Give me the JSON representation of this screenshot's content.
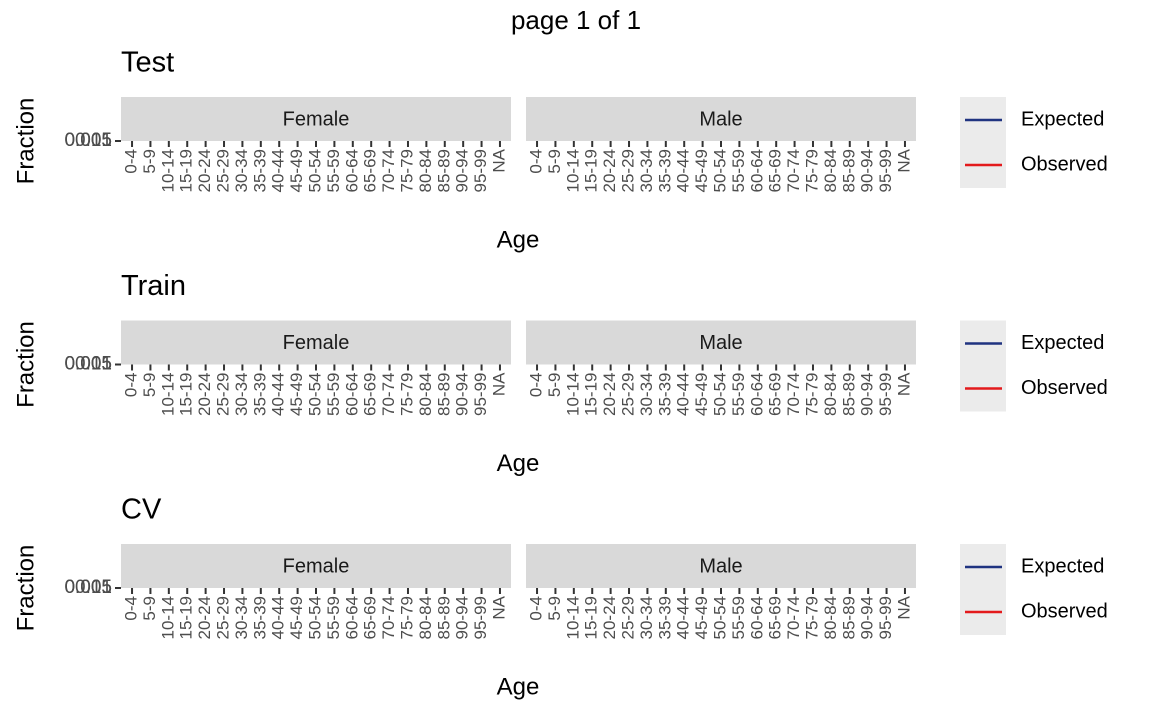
{
  "page_title": "page 1 of 1",
  "chart_data": [
    {
      "type": "line",
      "title": "Test",
      "facets": [
        "Female",
        "Male"
      ],
      "categories": [
        "0-4",
        "5-9",
        "10-14",
        "15-19",
        "20-24",
        "25-29",
        "30-34",
        "35-39",
        "40-44",
        "45-49",
        "50-54",
        "55-59",
        "60-64",
        "65-69",
        "70-74",
        "75-79",
        "80-84",
        "85-89",
        "90-94",
        "95-99",
        "NA"
      ],
      "x_label": "Age",
      "y_label": "Fraction",
      "ylim": [
        0.005,
        0.015
      ],
      "yticks": [
        0.005,
        0.01,
        0.015
      ],
      "series": [
        {
          "name": "Expected",
          "color": "#1f3380"
        },
        {
          "name": "Observed",
          "color": "#e31a1c"
        }
      ]
    },
    {
      "type": "line",
      "title": "Train",
      "facets": [
        "Female",
        "Male"
      ],
      "categories": [
        "0-4",
        "5-9",
        "10-14",
        "15-19",
        "20-24",
        "25-29",
        "30-34",
        "35-39",
        "40-44",
        "45-49",
        "50-54",
        "55-59",
        "60-64",
        "65-69",
        "70-74",
        "75-79",
        "80-84",
        "85-89",
        "90-94",
        "95-99",
        "NA"
      ],
      "x_label": "Age",
      "y_label": "Fraction",
      "ylim": [
        0.005,
        0.015
      ],
      "yticks": [
        0.005,
        0.01,
        0.015
      ],
      "series": [
        {
          "name": "Expected",
          "color": "#1f3380"
        },
        {
          "name": "Observed",
          "color": "#e31a1c"
        }
      ]
    },
    {
      "type": "line",
      "title": "CV",
      "facets": [
        "Female",
        "Male"
      ],
      "categories": [
        "0-4",
        "5-9",
        "10-14",
        "15-19",
        "20-24",
        "25-29",
        "30-34",
        "35-39",
        "40-44",
        "45-49",
        "50-54",
        "55-59",
        "60-64",
        "65-69",
        "70-74",
        "75-79",
        "80-84",
        "85-89",
        "90-94",
        "95-99",
        "NA"
      ],
      "x_label": "Age",
      "y_label": "Fraction",
      "ylim": [
        0.005,
        0.015
      ],
      "yticks": [
        0.005,
        0.01,
        0.015
      ],
      "series": [
        {
          "name": "Expected",
          "color": "#1f3380"
        },
        {
          "name": "Observed",
          "color": "#e31a1c"
        }
      ]
    }
  ]
}
